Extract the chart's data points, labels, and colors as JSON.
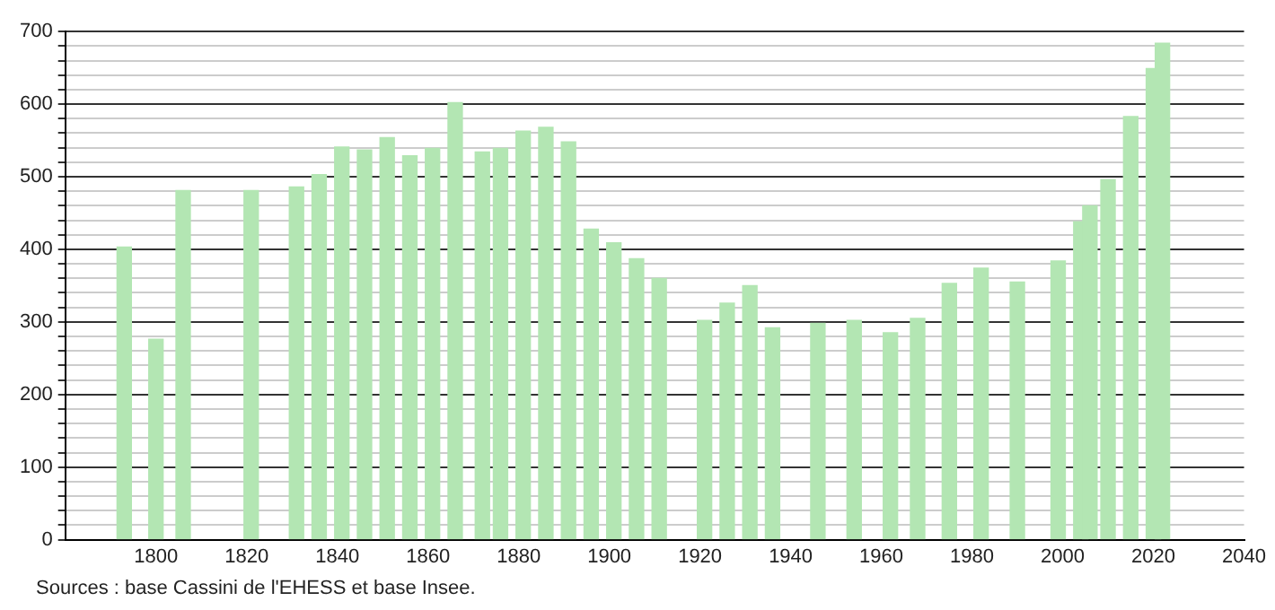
{
  "chart_data": {
    "type": "bar",
    "x": [
      1793,
      1800,
      1806,
      1821,
      1831,
      1836,
      1841,
      1846,
      1851,
      1856,
      1861,
      1866,
      1872,
      1876,
      1881,
      1886,
      1891,
      1896,
      1901,
      1906,
      1911,
      1921,
      1926,
      1931,
      1936,
      1946,
      1954,
      1962,
      1968,
      1975,
      1982,
      1990,
      1999,
      2004,
      2006,
      2010,
      2015,
      2020,
      2022
    ],
    "values": [
      403,
      276,
      481,
      481,
      486,
      503,
      541,
      537,
      554,
      529,
      539,
      602,
      534,
      539,
      563,
      568,
      548,
      428,
      409,
      387,
      360,
      302,
      326,
      350,
      292,
      298,
      302,
      285,
      305,
      353,
      374,
      355,
      384,
      438,
      460,
      496,
      583,
      649,
      684
    ],
    "color": "#b3e6b3",
    "xlim": [
      1780,
      2040
    ],
    "xticks": [
      1800,
      1820,
      1840,
      1860,
      1880,
      1900,
      1920,
      1940,
      1960,
      1980,
      2000,
      2020,
      2040
    ],
    "ylim": [
      0,
      700
    ],
    "yticks": [
      0,
      {
        "value": 20,
        "label": null
      },
      {
        "value": 40,
        "label": null
      },
      {
        "value": 60,
        "label": null
      },
      {
        "value": 80,
        "label": null
      },
      100,
      {
        "value": 120,
        "label": null
      },
      {
        "value": 140,
        "label": null
      },
      {
        "value": 160,
        "label": null
      },
      {
        "value": 180,
        "label": null
      },
      200,
      {
        "value": 220,
        "label": null
      },
      {
        "value": 240,
        "label": null
      },
      {
        "value": 260,
        "label": null
      },
      {
        "value": 280,
        "label": null
      },
      300,
      {
        "value": 320,
        "label": null
      },
      {
        "value": 340,
        "label": null
      },
      {
        "value": 360,
        "label": null
      },
      {
        "value": 380,
        "label": null
      },
      400,
      {
        "value": 420,
        "label": null
      },
      {
        "value": 440,
        "label": null
      },
      {
        "value": 460,
        "label": null
      },
      {
        "value": 480,
        "label": null
      },
      500,
      {
        "value": 520,
        "label": null
      },
      {
        "value": 540,
        "label": null
      },
      {
        "value": 560,
        "label": null
      },
      {
        "value": 580,
        "label": null
      },
      600,
      {
        "value": 620,
        "label": null
      },
      {
        "value": 640,
        "label": null
      },
      {
        "value": 660,
        "label": null
      },
      {
        "value": 680,
        "label": null
      },
      700
    ],
    "grid": "y",
    "annotations": [
      "Sources : base Cassini de l'EHESS et base Insee."
    ]
  }
}
